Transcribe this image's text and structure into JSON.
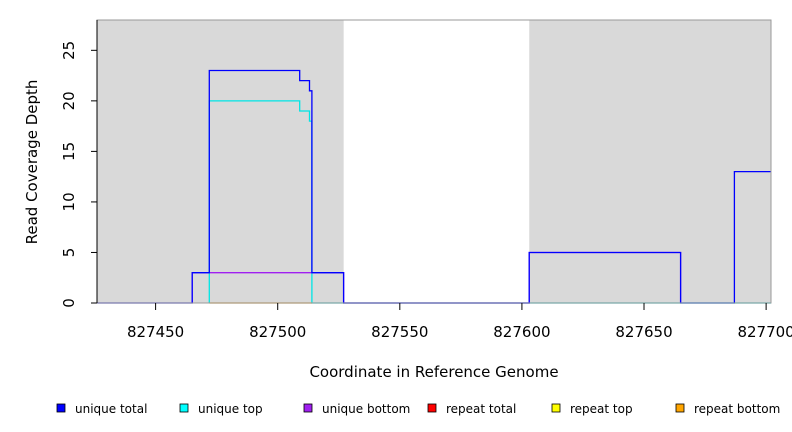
{
  "chart_data": {
    "type": "line",
    "xlabel": "Coordinate in Reference Genome",
    "ylabel": "Read Coverage Depth",
    "xlim": [
      827426,
      827702
    ],
    "ylim": [
      0,
      28
    ],
    "x_ticks": [
      827450,
      827500,
      827550,
      827600,
      827650,
      827700
    ],
    "x_tick_labels": [
      "827450",
      "827500",
      "827550",
      "827600",
      "827650",
      "827700"
    ],
    "y_ticks": [
      0,
      5,
      10,
      15,
      20,
      25
    ],
    "y_tick_labels": [
      "0",
      "5",
      "10",
      "15",
      "20",
      "25"
    ],
    "shaded_regions": [
      {
        "x": [
          827426,
          827527
        ],
        "color": "#d9d9d9"
      },
      {
        "x": [
          827603,
          827702
        ],
        "color": "#d9d9d9"
      }
    ],
    "series": [
      {
        "name": "unique total",
        "color": "#0000ff",
        "x": [
          827426,
          827465,
          827465,
          827472,
          827472,
          827509,
          827509,
          827513,
          827513,
          827514,
          827514,
          827527,
          827527,
          827603,
          827603,
          827665,
          827665,
          827687,
          827687,
          827702
        ],
        "y": [
          0,
          0,
          3,
          3,
          23,
          23,
          22,
          22,
          21,
          21,
          3,
          3,
          0,
          0,
          5,
          5,
          0,
          0,
          13,
          13
        ]
      },
      {
        "name": "unique top",
        "color": "#00e5e5",
        "x": [
          827472,
          827472,
          827509,
          827509,
          827513,
          827513,
          827514,
          827514,
          827527,
          827527,
          827702
        ],
        "y": [
          0,
          20,
          20,
          19,
          19,
          18,
          18,
          0,
          0,
          0,
          0
        ]
      },
      {
        "name": "unique bottom",
        "color": "#a020f0",
        "x": [
          827465,
          827465,
          827514,
          827514,
          827527,
          827527,
          827603,
          827603,
          827665,
          827665
        ],
        "y": [
          0,
          3,
          3,
          3,
          3,
          0,
          0,
          5,
          5,
          0
        ]
      },
      {
        "name": "repeat total",
        "color": "#ff0000",
        "x": [],
        "y": []
      },
      {
        "name": "repeat top",
        "color": "#ffff00",
        "x": [],
        "y": []
      },
      {
        "name": "repeat bottom",
        "color": "#ffa500",
        "x": [
          827472,
          827514
        ],
        "y": [
          0,
          0
        ]
      }
    ],
    "legend": {
      "placement": "bottom",
      "entries": [
        {
          "label": "unique total",
          "color": "#0000ff"
        },
        {
          "label": "unique top",
          "color": "#00ffff"
        },
        {
          "label": "unique bottom",
          "color": "#a020f0"
        },
        {
          "label": "repeat total",
          "color": "#ff0000"
        },
        {
          "label": "repeat top",
          "color": "#ffff00"
        },
        {
          "label": "repeat bottom",
          "color": "#ffa500"
        }
      ]
    }
  }
}
